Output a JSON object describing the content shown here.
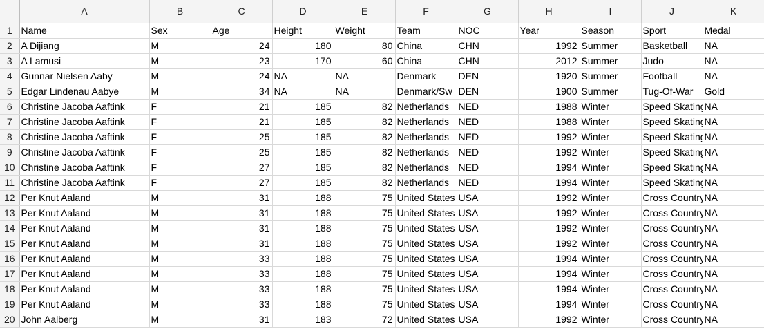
{
  "columns": [
    "A",
    "B",
    "C",
    "D",
    "E",
    "F",
    "G",
    "H",
    "I",
    "J",
    "K"
  ],
  "rows": [
    {
      "num": "1",
      "cells": [
        "Name",
        "Sex",
        "Age",
        "Height",
        "Weight",
        "Team",
        "NOC",
        "Year",
        "Season",
        "Sport",
        "Medal"
      ]
    },
    {
      "num": "2",
      "cells": [
        "A Dijiang",
        "M",
        "24",
        "180",
        "80",
        "China",
        "CHN",
        "1992",
        "Summer",
        "Basketball",
        "NA"
      ]
    },
    {
      "num": "3",
      "cells": [
        "A Lamusi",
        "M",
        "23",
        "170",
        "60",
        "China",
        "CHN",
        "2012",
        "Summer",
        "Judo",
        "NA"
      ]
    },
    {
      "num": "4",
      "cells": [
        "Gunnar Nielsen Aaby",
        "M",
        "24",
        "NA",
        "NA",
        "Denmark",
        "DEN",
        "1920",
        "Summer",
        "Football",
        "NA"
      ]
    },
    {
      "num": "5",
      "cells": [
        "Edgar Lindenau Aabye",
        "M",
        "34",
        "NA",
        "NA",
        "Denmark/Sw",
        "DEN",
        "1900",
        "Summer",
        "Tug-Of-War",
        "Gold"
      ]
    },
    {
      "num": "6",
      "cells": [
        "Christine Jacoba Aaftink",
        "F",
        "21",
        "185",
        "82",
        "Netherlands",
        "NED",
        "1988",
        "Winter",
        "Speed Skating",
        "NA"
      ]
    },
    {
      "num": "7",
      "cells": [
        "Christine Jacoba Aaftink",
        "F",
        "21",
        "185",
        "82",
        "Netherlands",
        "NED",
        "1988",
        "Winter",
        "Speed Skating",
        "NA"
      ]
    },
    {
      "num": "8",
      "cells": [
        "Christine Jacoba Aaftink",
        "F",
        "25",
        "185",
        "82",
        "Netherlands",
        "NED",
        "1992",
        "Winter",
        "Speed Skating",
        "NA"
      ]
    },
    {
      "num": "9",
      "cells": [
        "Christine Jacoba Aaftink",
        "F",
        "25",
        "185",
        "82",
        "Netherlands",
        "NED",
        "1992",
        "Winter",
        "Speed Skating",
        "NA"
      ]
    },
    {
      "num": "10",
      "cells": [
        "Christine Jacoba Aaftink",
        "F",
        "27",
        "185",
        "82",
        "Netherlands",
        "NED",
        "1994",
        "Winter",
        "Speed Skating",
        "NA"
      ]
    },
    {
      "num": "11",
      "cells": [
        "Christine Jacoba Aaftink",
        "F",
        "27",
        "185",
        "82",
        "Netherlands",
        "NED",
        "1994",
        "Winter",
        "Speed Skating",
        "NA"
      ]
    },
    {
      "num": "12",
      "cells": [
        "Per Knut Aaland",
        "M",
        "31",
        "188",
        "75",
        "United States",
        "USA",
        "1992",
        "Winter",
        "Cross Country",
        "NA"
      ]
    },
    {
      "num": "13",
      "cells": [
        "Per Knut Aaland",
        "M",
        "31",
        "188",
        "75",
        "United States",
        "USA",
        "1992",
        "Winter",
        "Cross Country",
        "NA"
      ]
    },
    {
      "num": "14",
      "cells": [
        "Per Knut Aaland",
        "M",
        "31",
        "188",
        "75",
        "United States",
        "USA",
        "1992",
        "Winter",
        "Cross Country",
        "NA"
      ]
    },
    {
      "num": "15",
      "cells": [
        "Per Knut Aaland",
        "M",
        "31",
        "188",
        "75",
        "United States",
        "USA",
        "1992",
        "Winter",
        "Cross Country",
        "NA"
      ]
    },
    {
      "num": "16",
      "cells": [
        "Per Knut Aaland",
        "M",
        "33",
        "188",
        "75",
        "United States",
        "USA",
        "1994",
        "Winter",
        "Cross Country",
        "NA"
      ]
    },
    {
      "num": "17",
      "cells": [
        "Per Knut Aaland",
        "M",
        "33",
        "188",
        "75",
        "United States",
        "USA",
        "1994",
        "Winter",
        "Cross Country",
        "NA"
      ]
    },
    {
      "num": "18",
      "cells": [
        "Per Knut Aaland",
        "M",
        "33",
        "188",
        "75",
        "United States",
        "USA",
        "1994",
        "Winter",
        "Cross Country",
        "NA"
      ]
    },
    {
      "num": "19",
      "cells": [
        "Per Knut Aaland",
        "M",
        "33",
        "188",
        "75",
        "United States",
        "USA",
        "1994",
        "Winter",
        "Cross Country",
        "NA"
      ]
    },
    {
      "num": "20",
      "cells": [
        "John Aalberg",
        "M",
        "31",
        "183",
        "72",
        "United States",
        "USA",
        "1992",
        "Winter",
        "Cross Country",
        "NA"
      ]
    }
  ]
}
